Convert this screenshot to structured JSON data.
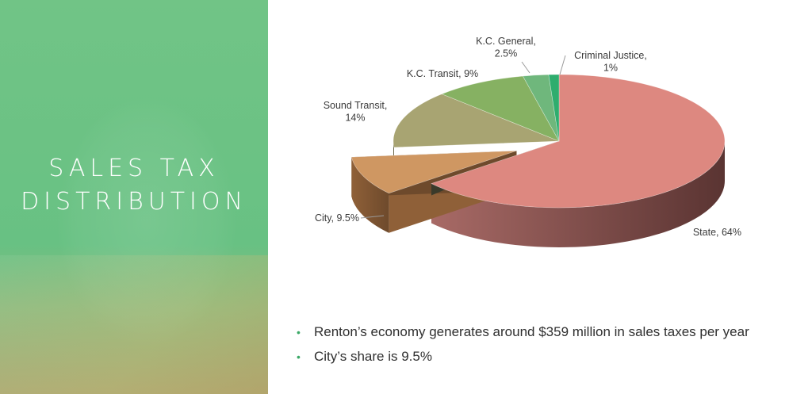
{
  "slide": {
    "title_lines": [
      "SALES TAX",
      "DISTRIBUTION"
    ]
  },
  "chart_data": {
    "type": "pie",
    "title": "",
    "slices": [
      {
        "label": "State",
        "value": 64,
        "display": "State, 64%",
        "color": "#dd8880",
        "side_dark": "#5a3432",
        "side_light": "#a86a66"
      },
      {
        "label": "City",
        "value": 9.5,
        "display": "City, 9.5%",
        "color": "#cf9762",
        "side_dark": "#6e4a2c",
        "side_light": "#8f6038",
        "exploded": true
      },
      {
        "label": "Sound Transit",
        "value": 14,
        "display": "Sound Transit, 14%",
        "color": "#a8a472",
        "side_dark": "#4f4a30",
        "side_light": "#6e6a45"
      },
      {
        "label": "K.C. Transit",
        "value": 9,
        "display": "K.C. Transit, 9%",
        "color": "#86b162",
        "side_dark": "#3c5a2b",
        "side_light": "#5c7e42"
      },
      {
        "label": "K.C. General",
        "value": 2.5,
        "display": "K.C. General, 2.5%",
        "color": "#6fb77c",
        "side_dark": "#345c3b",
        "side_light": "#4f8257"
      },
      {
        "label": "Criminal Justice",
        "value": 1,
        "display": "Criminal Justice, 1%",
        "color": "#2fad6e",
        "side_dark": "#1c5c3b",
        "side_light": "#247a4f"
      }
    ],
    "legend": "none",
    "style": "3d-exploded"
  },
  "bullets": [
    "Renton’s economy generates around $359 million in sales taxes per year",
    "City’s share is 9.5%"
  ]
}
